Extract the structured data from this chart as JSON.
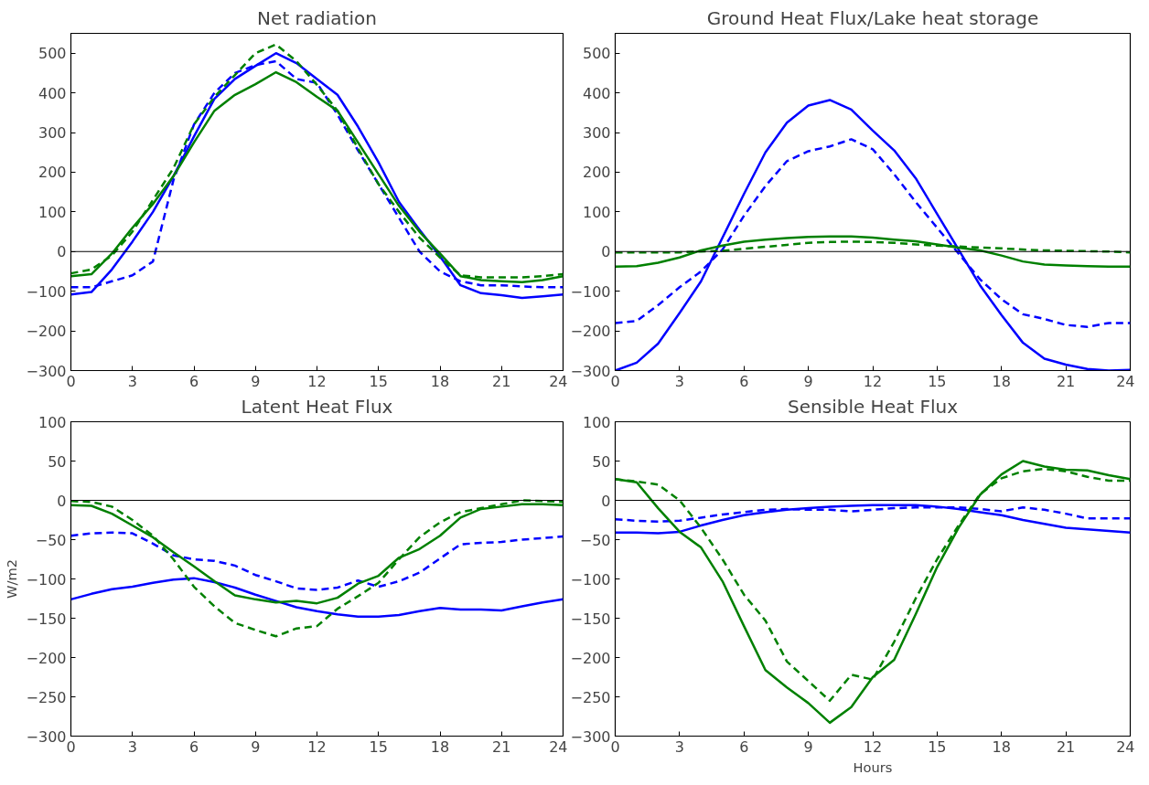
{
  "chart_data": [
    {
      "type": "line",
      "title": "Net radiation",
      "x": [
        0,
        1,
        2,
        3,
        4,
        5,
        6,
        7,
        8,
        9,
        10,
        11,
        12,
        13,
        14,
        15,
        16,
        17,
        18,
        19,
        20,
        21,
        22,
        23,
        24
      ],
      "xlim": [
        0,
        24
      ],
      "xticks": [
        0,
        3,
        6,
        9,
        12,
        15,
        18,
        21,
        24
      ],
      "ylim": [
        -300,
        550
      ],
      "yticks": [
        {
          "value": -300,
          "label": "−300"
        },
        {
          "value": -200,
          "label": "−200"
        },
        {
          "value": -100,
          "label": "−100"
        },
        0,
        100,
        200,
        300,
        400,
        500
      ],
      "ref_lines": [
        {
          "axis": "y",
          "value": 0,
          "color": "#000000"
        }
      ],
      "series": [
        {
          "color": "#0000ff",
          "line_style": "solid",
          "values": [
            -108,
            -102,
            -45,
            25,
            100,
            190,
            290,
            385,
            435,
            468,
            500,
            475,
            435,
            395,
            315,
            225,
            125,
            55,
            -12,
            -85,
            -105,
            -110,
            -117,
            -113,
            -108
          ]
        },
        {
          "color": "#0000ff",
          "line_style": "dashed",
          "values": [
            -90,
            -90,
            -75,
            -60,
            -25,
            180,
            320,
            400,
            450,
            470,
            480,
            435,
            425,
            345,
            255,
            170,
            85,
            0,
            -50,
            -75,
            -85,
            -85,
            -88,
            -90,
            -90
          ]
        },
        {
          "color": "#008000",
          "line_style": "solid",
          "values": [
            -62,
            -57,
            -5,
            60,
            120,
            190,
            275,
            355,
            395,
            422,
            452,
            427,
            390,
            355,
            275,
            195,
            115,
            50,
            -5,
            -62,
            -72,
            -75,
            -77,
            -72,
            -62
          ]
        },
        {
          "color": "#008000",
          "line_style": "dashed",
          "values": [
            -55,
            -45,
            -10,
            50,
            130,
            210,
            320,
            390,
            445,
            500,
            522,
            480,
            420,
            355,
            260,
            170,
            100,
            35,
            -15,
            -60,
            -65,
            -65,
            -65,
            -62,
            -57
          ]
        }
      ]
    },
    {
      "type": "line",
      "title": "Ground Heat Flux/Lake heat storage",
      "x": [
        0,
        1,
        2,
        3,
        4,
        5,
        6,
        7,
        8,
        9,
        10,
        11,
        12,
        13,
        14,
        15,
        16,
        17,
        18,
        19,
        20,
        21,
        22,
        23,
        24
      ],
      "xlim": [
        0,
        24
      ],
      "xticks": [
        0,
        3,
        6,
        9,
        12,
        15,
        18,
        21,
        24
      ],
      "ylim": [
        -300,
        550
      ],
      "yticks": [
        {
          "value": -300,
          "label": "−300"
        },
        {
          "value": -200,
          "label": "−200"
        },
        {
          "value": -100,
          "label": "−100"
        },
        0,
        100,
        200,
        300,
        400,
        500
      ],
      "ref_lines": [
        {
          "axis": "y",
          "value": 0,
          "color": "#000000"
        }
      ],
      "series": [
        {
          "color": "#0000ff",
          "line_style": "solid",
          "values": [
            -300,
            -280,
            -232,
            -155,
            -75,
            35,
            145,
            250,
            325,
            368,
            382,
            358,
            305,
            255,
            185,
            95,
            5,
            -85,
            -160,
            -230,
            -270,
            -285,
            -296,
            -300,
            -298
          ]
        },
        {
          "color": "#0000ff",
          "line_style": "dashed",
          "values": [
            -180,
            -175,
            -135,
            -90,
            -50,
            5,
            90,
            165,
            228,
            253,
            265,
            283,
            258,
            195,
            125,
            60,
            -5,
            -70,
            -120,
            -158,
            -170,
            -185,
            -190,
            -180,
            -180
          ]
        },
        {
          "color": "#008000",
          "line_style": "solid",
          "values": [
            -38,
            -37,
            -28,
            -15,
            3,
            15,
            25,
            30,
            34,
            37,
            38,
            38,
            35,
            30,
            26,
            18,
            10,
            3,
            -10,
            -25,
            -33,
            -35,
            -37,
            -38,
            -38
          ]
        },
        {
          "color": "#008000",
          "line_style": "dashed",
          "values": [
            -2,
            -2,
            -2,
            -2,
            0,
            2,
            7,
            12,
            17,
            22,
            24,
            25,
            24,
            22,
            18,
            15,
            13,
            10,
            8,
            5,
            3,
            2,
            1,
            0,
            -2
          ]
        }
      ]
    },
    {
      "type": "line",
      "title": "Latent Heat Flux",
      "ylabel": "W/m2",
      "x": [
        0,
        1,
        2,
        3,
        4,
        5,
        6,
        7,
        8,
        9,
        10,
        11,
        12,
        13,
        14,
        15,
        16,
        17,
        18,
        19,
        20,
        21,
        22,
        23,
        24
      ],
      "xlim": [
        0,
        24
      ],
      "xticks": [
        0,
        3,
        6,
        9,
        12,
        15,
        18,
        21,
        24
      ],
      "ylim": [
        -300,
        100
      ],
      "yticks": [
        {
          "value": -300,
          "label": "−300"
        },
        {
          "value": -250,
          "label": "−250"
        },
        {
          "value": -200,
          "label": "−200"
        },
        {
          "value": -150,
          "label": "−150"
        },
        {
          "value": -100,
          "label": "−100"
        },
        {
          "value": -50,
          "label": "−50"
        },
        0,
        50,
        100
      ],
      "ref_lines": [
        {
          "axis": "y",
          "value": 0,
          "color": "#000000"
        }
      ],
      "series": [
        {
          "color": "#0000ff",
          "line_style": "solid",
          "values": [
            -126,
            -119,
            -113,
            -110,
            -105,
            -101,
            -99,
            -104,
            -111,
            -120,
            -128,
            -136,
            -141,
            -145,
            -148,
            -148,
            -146,
            -141,
            -137,
            -139,
            -139,
            -140,
            -135,
            -130,
            -126
          ]
        },
        {
          "color": "#0000ff",
          "line_style": "dashed",
          "values": [
            -45,
            -42,
            -41,
            -42,
            -55,
            -70,
            -75,
            -77,
            -83,
            -95,
            -103,
            -112,
            -114,
            -111,
            -102,
            -110,
            -103,
            -92,
            -74,
            -56,
            -54,
            -53,
            -50,
            -48,
            -46
          ]
        },
        {
          "color": "#008000",
          "line_style": "solid",
          "values": [
            -6,
            -7,
            -17,
            -32,
            -47,
            -66,
            -84,
            -103,
            -121,
            -126,
            -130,
            -128,
            -131,
            -124,
            -106,
            -96,
            -73,
            -62,
            -45,
            -22,
            -11,
            -8,
            -5,
            -5,
            -6
          ]
        },
        {
          "color": "#008000",
          "line_style": "dashed",
          "values": [
            -1,
            -2,
            -8,
            -25,
            -45,
            -75,
            -110,
            -135,
            -156,
            -165,
            -173,
            -163,
            -160,
            -138,
            -122,
            -105,
            -75,
            -47,
            -28,
            -15,
            -10,
            -5,
            0,
            -1,
            -2
          ]
        }
      ]
    },
    {
      "type": "line",
      "title": "Sensible Heat Flux",
      "xlabel": "Hours",
      "x": [
        0,
        1,
        2,
        3,
        4,
        5,
        6,
        7,
        8,
        9,
        10,
        11,
        12,
        13,
        14,
        15,
        16,
        17,
        18,
        19,
        20,
        21,
        22,
        23,
        24
      ],
      "xlim": [
        0,
        24
      ],
      "xticks": [
        0,
        3,
        6,
        9,
        12,
        15,
        18,
        21,
        24
      ],
      "ylim": [
        -300,
        100
      ],
      "yticks": [
        {
          "value": -300,
          "label": "−300"
        },
        {
          "value": -250,
          "label": "−250"
        },
        {
          "value": -200,
          "label": "−200"
        },
        {
          "value": -150,
          "label": "−150"
        },
        {
          "value": -100,
          "label": "−100"
        },
        {
          "value": -50,
          "label": "−50"
        },
        0,
        50,
        100
      ],
      "ref_lines": [
        {
          "axis": "y",
          "value": 0,
          "color": "#000000"
        }
      ],
      "series": [
        {
          "color": "#0000ff",
          "line_style": "solid",
          "values": [
            -41,
            -41,
            -42,
            -40,
            -32,
            -25,
            -19,
            -15,
            -12,
            -10,
            -8,
            -7,
            -6,
            -6,
            -6,
            -8,
            -11,
            -15,
            -19,
            -25,
            -30,
            -35,
            -37,
            -39,
            -41
          ]
        },
        {
          "color": "#0000ff",
          "line_style": "dashed",
          "values": [
            -24,
            -26,
            -27,
            -26,
            -22,
            -18,
            -15,
            -12,
            -11,
            -12,
            -12,
            -14,
            -12,
            -10,
            -9,
            -9,
            -9,
            -11,
            -14,
            -9,
            -12,
            -17,
            -23,
            -23,
            -23
          ]
        },
        {
          "color": "#008000",
          "line_style": "solid",
          "values": [
            27,
            23,
            -10,
            -40,
            -60,
            -103,
            -160,
            -216,
            -238,
            -258,
            -283,
            -263,
            -225,
            -203,
            -145,
            -85,
            -35,
            7,
            33,
            50,
            43,
            39,
            38,
            32,
            27
          ]
        },
        {
          "color": "#008000",
          "line_style": "dashed",
          "values": [
            27,
            24,
            20,
            0,
            -35,
            -75,
            -120,
            -153,
            -205,
            -230,
            -255,
            -222,
            -228,
            -180,
            -125,
            -75,
            -32,
            8,
            28,
            37,
            40,
            37,
            30,
            25,
            25
          ]
        }
      ]
    }
  ]
}
